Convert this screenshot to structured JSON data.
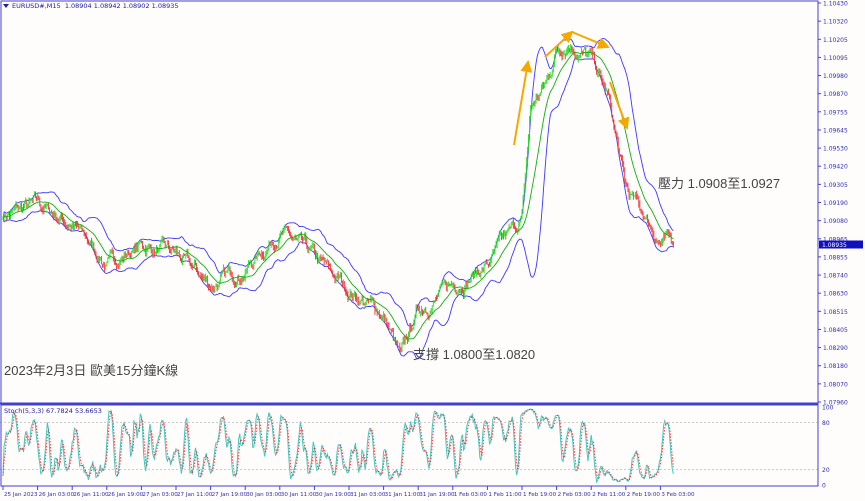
{
  "header": {
    "symbol": "EURUSD#,M15",
    "ohlc": "1.08904 1.08942 1.08902 1.08935"
  },
  "annotations": {
    "resistance": "壓力 1.0908至1.0927",
    "support": "支撐 1.0800至1.0820",
    "caption": "2023年2月3日 歐美15分鐘K線"
  },
  "stochastic": {
    "label": "Stoch(5,3,3) 67.7824 53.6653",
    "levels": [
      "100",
      "80",
      "20",
      "0"
    ]
  },
  "colors": {
    "bull": "#22dd22",
    "bear": "#ee3333",
    "bands": "#3a3aff",
    "middle": "#10b010",
    "stoch_main": "#40c8c0",
    "stoch_signal": "#ee3333",
    "arrows": "#f5a800",
    "axis": "#4040d0",
    "current_price_bg": "#1010c0"
  },
  "chart_data": {
    "type": "candlestick",
    "indicators": [
      "Bollinger Bands",
      "Moving Average",
      "Stochastic(5,3,3)"
    ],
    "current_price": "1.08935",
    "ylim": [
      1.0796,
      1.1043
    ],
    "y_ticks": [
      "1.10430",
      "1.10320",
      "1.10205",
      "1.10095",
      "1.09980",
      "1.09870",
      "1.09755",
      "1.09645",
      "1.09530",
      "1.09420",
      "1.09305",
      "1.09190",
      "1.09080",
      "1.08965",
      "1.08855",
      "1.08740",
      "1.08630",
      "1.08515",
      "1.08405",
      "1.08290",
      "1.08180",
      "1.08070",
      "1.07960"
    ],
    "x_ticks": [
      "25 Jan 2023",
      "26 Jan 03:00",
      "26 Jan 11:00",
      "26 Jan 19:00",
      "27 Jan 03:00",
      "27 Jan 11:00",
      "27 Jan 19:00",
      "30 Jan 03:00",
      "30 Jan 11:00",
      "30 Jan 19:00",
      "31 Jan 03:00",
      "31 Jan 11:00",
      "31 Jan 19:00",
      "1 Feb 03:00",
      "1 Feb 11:00",
      "1 Feb 19:00",
      "2 Feb 03:00",
      "2 Feb 11:00",
      "2 Feb 19:00",
      "3 Feb 03:00"
    ],
    "close_path": [
      {
        "time": "25 Jan 19:00",
        "price": 1.0912
      },
      {
        "time": "26 Jan 03:00",
        "price": 1.0918
      },
      {
        "time": "26 Jan 11:00",
        "price": 1.0906
      },
      {
        "time": "26 Jan 19:00",
        "price": 1.0881
      },
      {
        "time": "27 Jan 03:00",
        "price": 1.0893
      },
      {
        "time": "27 Jan 11:00",
        "price": 1.0887
      },
      {
        "time": "27 Jan 19:00",
        "price": 1.0868
      },
      {
        "time": "30 Jan 03:00",
        "price": 1.0878
      },
      {
        "time": "30 Jan 11:00",
        "price": 1.0902
      },
      {
        "time": "30 Jan 19:00",
        "price": 1.0884
      },
      {
        "time": "31 Jan 03:00",
        "price": 1.0865
      },
      {
        "time": "31 Jan 11:00",
        "price": 1.085
      },
      {
        "time": "31 Jan 15:00",
        "price": 1.0822
      },
      {
        "time": "31 Jan 19:00",
        "price": 1.0853
      },
      {
        "time": "1 Feb 03:00",
        "price": 1.0868
      },
      {
        "time": "1 Feb 11:00",
        "price": 1.0881
      },
      {
        "time": "1 Feb 19:00",
        "price": 1.0909
      },
      {
        "time": "1 Feb 21:00",
        "price": 1.0977
      },
      {
        "time": "2 Feb 01:00",
        "price": 1.0995
      },
      {
        "time": "2 Feb 03:00",
        "price": 1.1014
      },
      {
        "time": "2 Feb 06:00",
        "price": 1.102
      },
      {
        "time": "2 Feb 11:00",
        "price": 1.1008
      },
      {
        "time": "2 Feb 15:00",
        "price": 1.0983
      },
      {
        "time": "2 Feb 19:00",
        "price": 1.0927
      },
      {
        "time": "2 Feb 23:00",
        "price": 1.0912
      },
      {
        "time": "3 Feb 03:00",
        "price": 1.0896
      },
      {
        "time": "3 Feb 06:00",
        "price": 1.08935
      }
    ]
  }
}
